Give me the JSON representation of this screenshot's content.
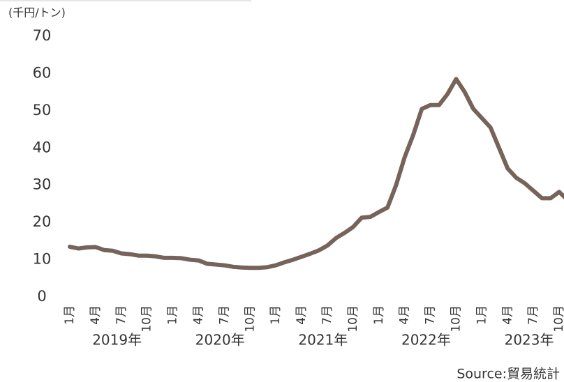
{
  "chart_data": {
    "type": "line",
    "unit_label": "(千円/トン)",
    "source": "Source:貿易統計",
    "categories": [
      "1月",
      null,
      null,
      "4月",
      null,
      null,
      "7月",
      null,
      null,
      "10月",
      null,
      null,
      "1月",
      null,
      null,
      "4月",
      null,
      null,
      "7月",
      null,
      null,
      "10月",
      null,
      null,
      "1月",
      null,
      null,
      "4月",
      null,
      null,
      "7月",
      null,
      null,
      "10月",
      null,
      null,
      "1月",
      null,
      null,
      "4月",
      null,
      null,
      "7月",
      null,
      null,
      "10月",
      null,
      null,
      "1月",
      null,
      null,
      "4月",
      null,
      null,
      "7月",
      null,
      null,
      "10月",
      null
    ],
    "year_labels": [
      "2019年",
      "2020年",
      "2021年",
      "2022年",
      "2023年"
    ],
    "series": [
      {
        "color": "#76635a",
        "values": [
          13.5,
          13.0,
          13.3,
          13.4,
          12.6,
          12.4,
          11.7,
          11.5,
          11.1,
          11.1,
          10.9,
          10.5,
          10.5,
          10.4,
          10.0,
          9.8,
          8.9,
          8.7,
          8.5,
          8.1,
          7.9,
          7.8,
          7.8,
          8.0,
          8.5,
          9.3,
          10.0,
          10.8,
          11.6,
          12.5,
          13.8,
          15.8,
          17.2,
          18.8,
          21.3,
          21.5,
          22.8,
          24.0,
          30.0,
          37.5,
          43.5,
          50.5,
          51.5,
          51.5,
          54.5,
          58.5,
          55.0,
          50.5,
          48.0,
          45.5,
          40.0,
          34.5,
          32.0,
          30.5,
          28.5,
          26.5,
          26.5,
          28.2,
          26.0
        ]
      }
    ],
    "ylim": [
      0,
      70
    ],
    "yticks": [
      0,
      10,
      20,
      30,
      40,
      50,
      60,
      70
    ],
    "grid": false
  }
}
